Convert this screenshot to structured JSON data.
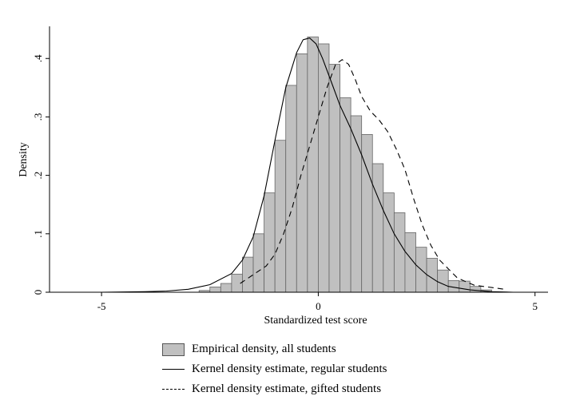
{
  "chart_data": {
    "type": "bar",
    "xlabel": "Standardized test score",
    "ylabel": "Density",
    "xlim": [
      -6.2,
      5.3
    ],
    "ylim": [
      0,
      0.455
    ],
    "x_ticks": [
      -5,
      0,
      5
    ],
    "x_tick_labels": [
      "-5",
      "0",
      "5"
    ],
    "y_ticks": [
      0,
      0.1,
      0.2,
      0.3,
      0.4
    ],
    "y_tick_labels": [
      "0",
      ".1",
      ".2",
      ".3",
      ".4"
    ],
    "grid": false,
    "legend_position": "bottom",
    "histogram": {
      "name": "Empirical density, all students",
      "bin_width": 0.25,
      "bins": [
        {
          "x0": -2.75,
          "value": 0.003
        },
        {
          "x0": -2.5,
          "value": 0.009
        },
        {
          "x0": -2.25,
          "value": 0.015
        },
        {
          "x0": -2.0,
          "value": 0.031
        },
        {
          "x0": -1.75,
          "value": 0.06
        },
        {
          "x0": -1.5,
          "value": 0.1
        },
        {
          "x0": -1.25,
          "value": 0.17
        },
        {
          "x0": -1.0,
          "value": 0.26
        },
        {
          "x0": -0.75,
          "value": 0.354
        },
        {
          "x0": -0.5,
          "value": 0.408
        },
        {
          "x0": -0.25,
          "value": 0.437
        },
        {
          "x0": 0.0,
          "value": 0.425
        },
        {
          "x0": 0.25,
          "value": 0.39
        },
        {
          "x0": 0.5,
          "value": 0.333
        },
        {
          "x0": 0.75,
          "value": 0.302
        },
        {
          "x0": 1.0,
          "value": 0.27
        },
        {
          "x0": 1.25,
          "value": 0.22
        },
        {
          "x0": 1.5,
          "value": 0.17
        },
        {
          "x0": 1.75,
          "value": 0.136
        },
        {
          "x0": 2.0,
          "value": 0.102
        },
        {
          "x0": 2.25,
          "value": 0.077
        },
        {
          "x0": 2.5,
          "value": 0.058
        },
        {
          "x0": 2.75,
          "value": 0.038
        },
        {
          "x0": 3.0,
          "value": 0.02
        },
        {
          "x0": 3.25,
          "value": 0.019
        },
        {
          "x0": 3.5,
          "value": 0.01
        },
        {
          "x0": 3.75,
          "value": 0.004
        }
      ]
    },
    "series": [
      {
        "name": "Kernel density estimate, regular students",
        "style": "solid",
        "x": [
          -5.8,
          -5.0,
          -4.0,
          -3.5,
          -3.0,
          -2.5,
          -2.0,
          -1.75,
          -1.5,
          -1.25,
          -1.0,
          -0.75,
          -0.5,
          -0.35,
          -0.2,
          -0.05,
          0.1,
          0.3,
          0.5,
          0.75,
          1.0,
          1.25,
          1.5,
          1.75,
          2.0,
          2.25,
          2.5,
          2.75,
          3.0,
          3.5,
          4.0,
          4.5,
          5.0
        ],
        "y": [
          0.0,
          0.0,
          0.001,
          0.002,
          0.005,
          0.013,
          0.032,
          0.055,
          0.095,
          0.165,
          0.26,
          0.35,
          0.41,
          0.432,
          0.435,
          0.425,
          0.4,
          0.36,
          0.32,
          0.28,
          0.235,
          0.185,
          0.14,
          0.1,
          0.07,
          0.047,
          0.03,
          0.018,
          0.01,
          0.004,
          0.001,
          0.0,
          0.0
        ]
      },
      {
        "name": "Kernel density estimate, gifted students",
        "style": "dashed",
        "x": [
          -1.8,
          -1.5,
          -1.2,
          -1.0,
          -0.8,
          -0.6,
          -0.4,
          -0.2,
          0.0,
          0.2,
          0.4,
          0.55,
          0.7,
          0.85,
          1.0,
          1.2,
          1.4,
          1.6,
          1.8,
          2.0,
          2.2,
          2.4,
          2.6,
          2.8,
          3.0,
          3.2,
          3.4,
          3.6,
          3.8,
          4.0,
          4.3
        ],
        "y": [
          0.015,
          0.03,
          0.045,
          0.065,
          0.1,
          0.145,
          0.2,
          0.25,
          0.3,
          0.35,
          0.39,
          0.398,
          0.39,
          0.365,
          0.335,
          0.31,
          0.295,
          0.275,
          0.245,
          0.21,
          0.16,
          0.115,
          0.08,
          0.055,
          0.04,
          0.025,
          0.018,
          0.012,
          0.01,
          0.008,
          0.005
        ]
      }
    ]
  },
  "legend": {
    "histogram_label": "Empirical density, all students",
    "regular_label": "Kernel density estimate, regular students",
    "gifted_label": "Kernel density estimate, gifted students"
  }
}
